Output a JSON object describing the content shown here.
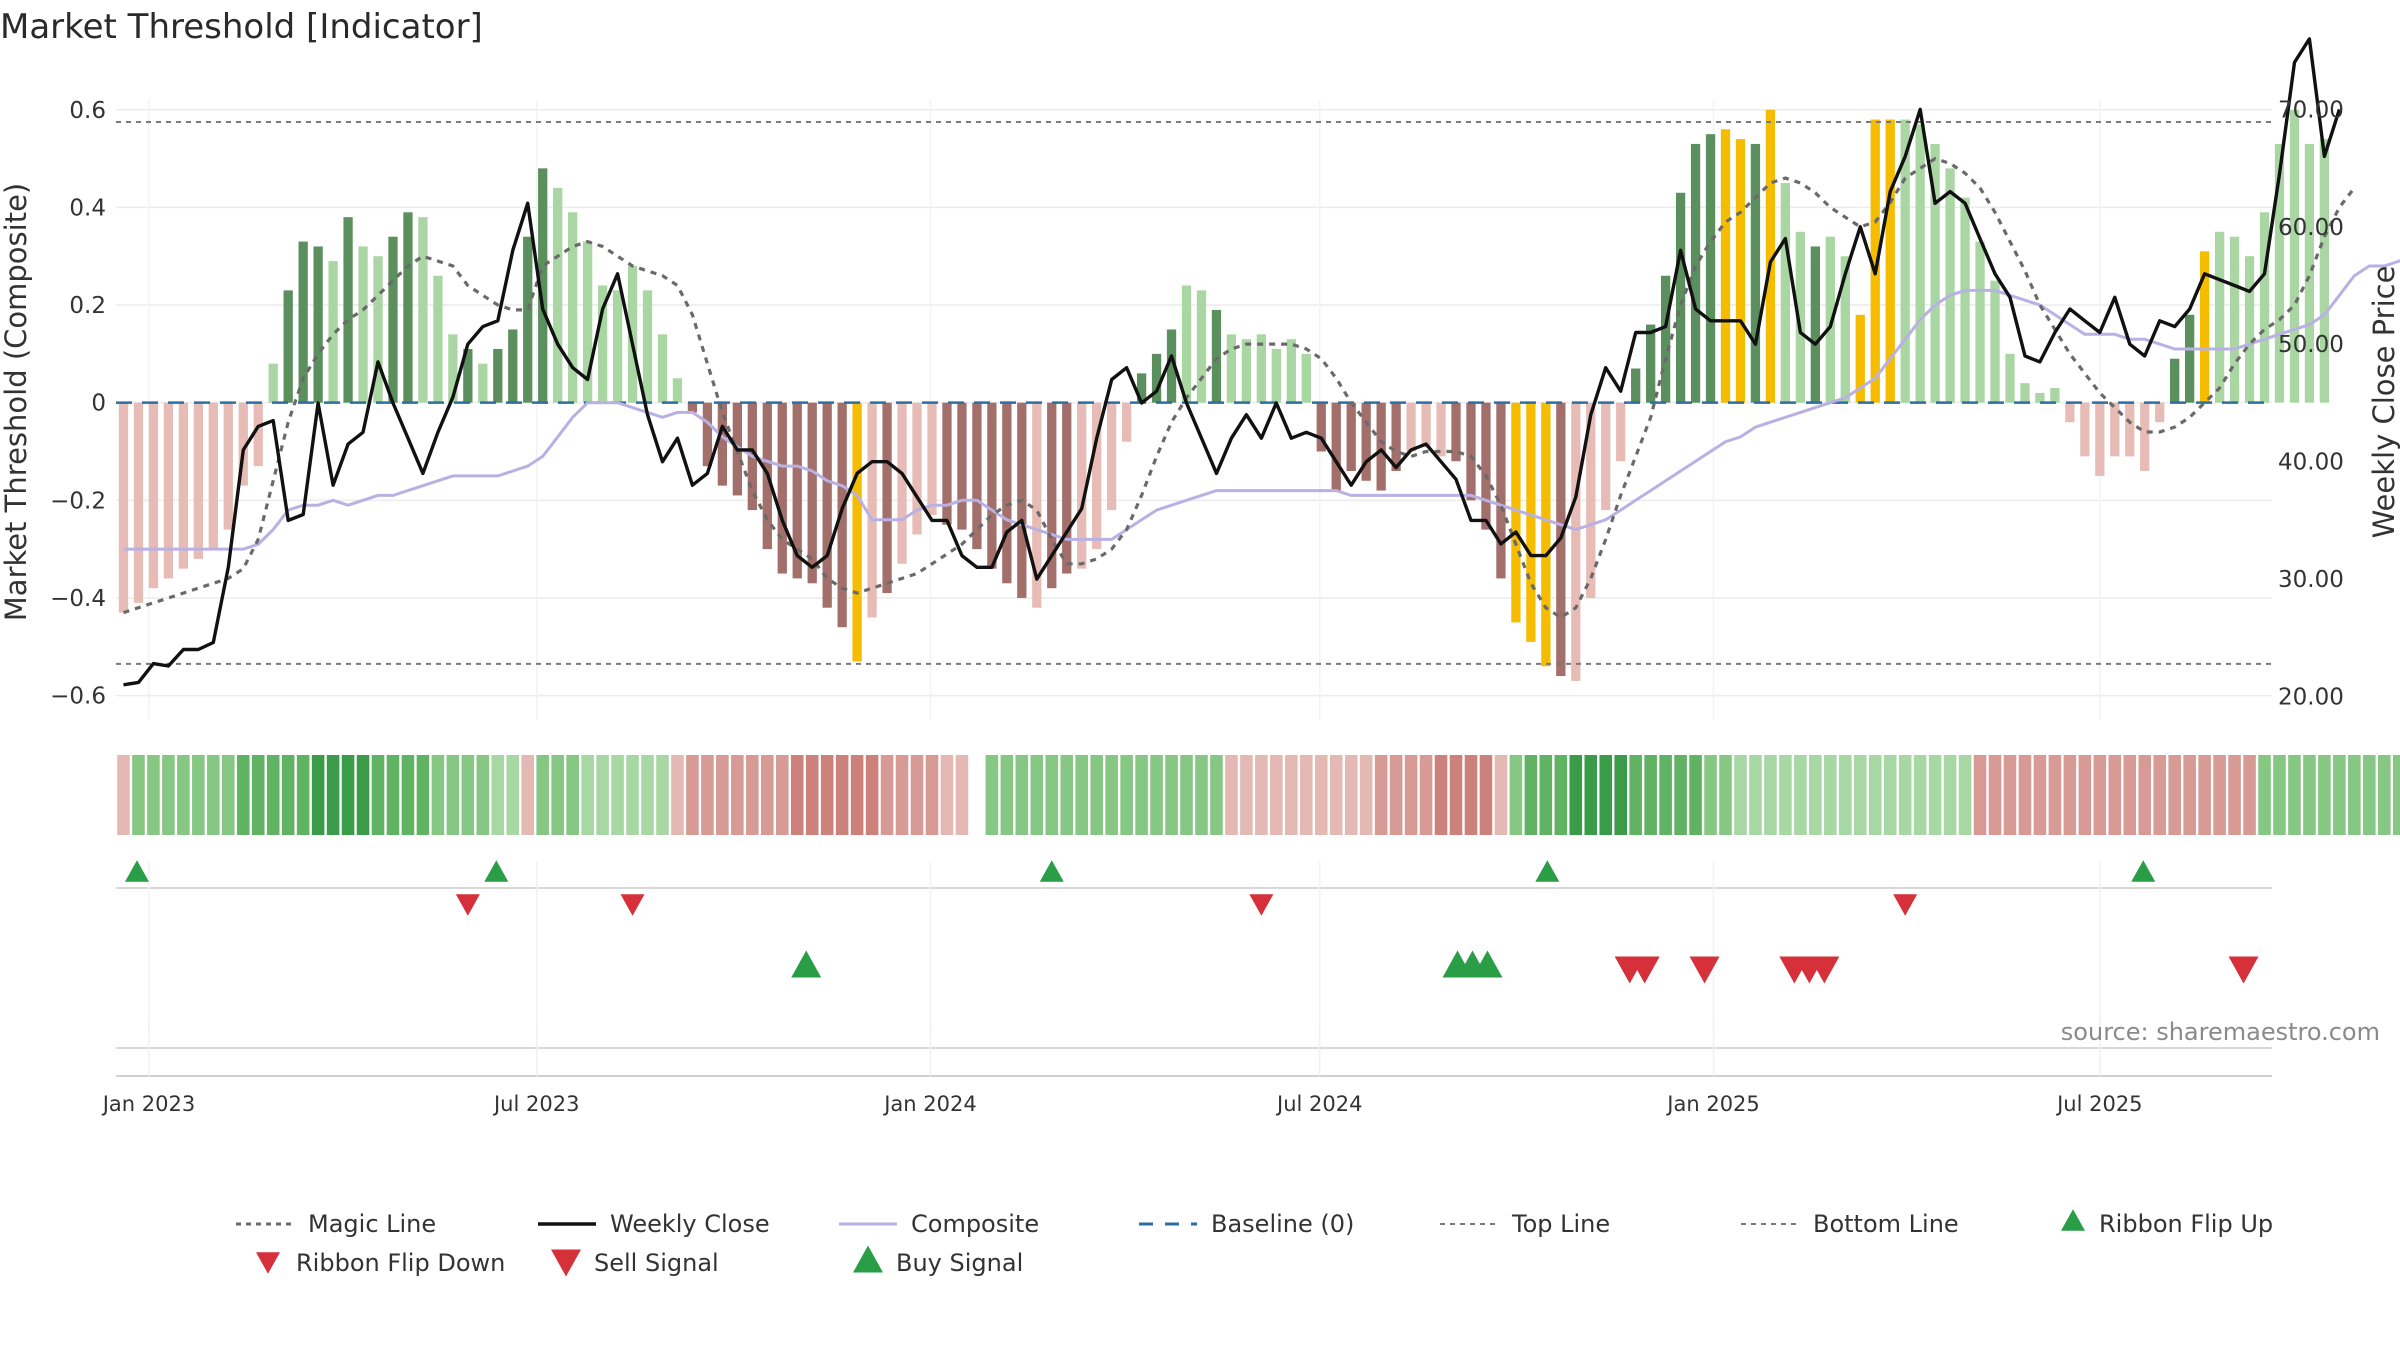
{
  "chart_data": {
    "type": "bar",
    "title": "Market Threshold [Indicator]",
    "ylabel_left": "Market Threshold (Composite)",
    "ylabel_right": "Weekly Close Price",
    "ylim_left": [
      -0.65,
      0.62
    ],
    "ylim_right": [
      18,
      70.8
    ],
    "yticks_left": [
      {
        "value": 0.6,
        "label": "0.6"
      },
      {
        "value": 0.4,
        "label": "0.4"
      },
      {
        "value": 0.2,
        "label": "0.2"
      },
      {
        "value": 0,
        "label": "0"
      },
      {
        "value": -0.2,
        "label": "−0.2"
      },
      {
        "value": -0.4,
        "label": "−0.4"
      },
      {
        "value": -0.6,
        "label": "−0.6"
      }
    ],
    "yticks_right": [
      {
        "value": 70,
        "label": "70.00"
      },
      {
        "value": 60,
        "label": "60.00"
      },
      {
        "value": 50,
        "label": "50.00"
      },
      {
        "value": 40,
        "label": "40.00"
      },
      {
        "value": 30,
        "label": "30.00"
      },
      {
        "value": 20,
        "label": "20.00"
      }
    ],
    "x_start_week": 0,
    "n_weeks": 144,
    "xticks": [
      {
        "week": 1.7,
        "label": "Jan 2023"
      },
      {
        "week": 27.6,
        "label": "Jul 2023"
      },
      {
        "week": 53.9,
        "label": "Jan 2024"
      },
      {
        "week": 79.9,
        "label": "Jul 2024"
      },
      {
        "week": 106.2,
        "label": "Jan 2025"
      },
      {
        "week": 132.0,
        "label": "Jul 2025"
      }
    ],
    "top_line": 0.575,
    "bottom_line": -0.535,
    "baseline": 0,
    "composite_bars": [
      -0.43,
      -0.41,
      -0.38,
      -0.36,
      -0.34,
      -0.32,
      -0.3,
      -0.26,
      -0.17,
      -0.13,
      0.08,
      0.23,
      0.33,
      0.32,
      0.29,
      0.38,
      0.32,
      0.3,
      0.34,
      0.39,
      0.38,
      0.26,
      0.14,
      0.11,
      0.08,
      0.11,
      0.15,
      0.34,
      0.48,
      0.44,
      0.39,
      0.33,
      0.24,
      0.23,
      0.28,
      0.23,
      0.14,
      0.05,
      -0.02,
      -0.13,
      -0.17,
      -0.19,
      -0.22,
      -0.3,
      -0.35,
      -0.36,
      -0.37,
      -0.42,
      -0.46,
      -0.53,
      -0.44,
      -0.39,
      -0.33,
      -0.27,
      -0.23,
      -0.25,
      -0.26,
      -0.3,
      -0.34,
      -0.37,
      -0.4,
      -0.42,
      -0.38,
      -0.35,
      -0.34,
      -0.3,
      -0.22,
      -0.08,
      0.06,
      0.1,
      0.15,
      0.24,
      0.23,
      0.19,
      0.14,
      0.13,
      0.14,
      0.11,
      0.13,
      0.1,
      -0.1,
      -0.18,
      -0.14,
      -0.16,
      -0.18,
      -0.14,
      -0.1,
      -0.09,
      -0.11,
      -0.12,
      -0.2,
      -0.26,
      -0.36,
      -0.45,
      -0.49,
      -0.54,
      -0.56,
      -0.57,
      -0.4,
      -0.22,
      -0.12,
      0.07,
      0.16,
      0.26,
      0.43,
      0.53,
      0.55,
      0.56,
      0.54,
      0.53,
      0.6,
      0.45,
      0.35,
      0.32,
      0.34,
      0.3,
      0.18,
      0.58,
      0.58,
      0.58,
      0.57,
      0.53,
      0.48,
      0.42,
      0.33,
      0.25,
      0.1,
      0.04,
      0.02,
      0.03,
      -0.04,
      -0.11,
      -0.15,
      -0.11,
      -0.11,
      -0.14,
      -0.04,
      0.09,
      0.18,
      0.31,
      0.35,
      0.34,
      0.3,
      0.39,
      0.53,
      0.6,
      0.53,
      0.54
    ],
    "weekly_close": [
      21.0,
      21.2,
      22.8,
      22.6,
      24.0,
      24.0,
      24.6,
      31.0,
      41.0,
      43.0,
      43.5,
      35.0,
      35.5,
      45.0,
      38.0,
      41.5,
      42.5,
      48.5,
      45.0,
      42.0,
      39.0,
      42.5,
      45.5,
      50.0,
      51.5,
      52.0,
      58.0,
      62.0,
      53.0,
      50.0,
      48.0,
      47.0,
      53.0,
      56.0,
      50.0,
      44.0,
      40.0,
      42.0,
      38.0,
      39.0,
      43.0,
      41.0,
      41.0,
      39.0,
      35.0,
      32.0,
      31.0,
      32.0,
      36.0,
      39.0,
      40.0,
      40.0,
      39.0,
      37.0,
      35.0,
      35.0,
      32.0,
      31.0,
      31.0,
      34.0,
      35.0,
      30.0,
      32.0,
      34.0,
      36.0,
      42.0,
      47.0,
      48.0,
      45.0,
      46.0,
      49.0,
      45.0,
      42.0,
      39.0,
      42.0,
      44.0,
      42.0,
      45.0,
      42.0,
      42.5,
      42.0,
      40.0,
      38.0,
      40.0,
      41.0,
      39.5,
      41.0,
      41.5,
      40.0,
      38.5,
      35.0,
      35.0,
      33.0,
      34.0,
      32.0,
      32.0,
      33.5,
      37.0,
      44.0,
      48.0,
      46.0,
      51.0,
      51.0,
      51.5,
      58.0,
      53.0,
      52.0,
      52.0,
      52.0,
      50.0,
      57.0,
      59.0,
      51.0,
      50.0,
      51.5,
      56.0,
      60.0,
      56.0,
      63.0,
      66.0,
      70.0,
      62.0,
      63.0,
      62.0,
      59.0,
      56.0,
      54.0,
      49.0,
      48.5,
      51.0,
      53.0,
      52.0,
      51.0,
      54.0,
      50.0,
      49.0,
      52.0,
      51.5,
      53.0,
      56.0,
      55.5,
      55.0,
      54.5,
      56.0,
      64.5,
      74.0,
      76.0,
      66.0,
      70.0
    ],
    "composite_line": [
      -0.3,
      -0.3,
      -0.3,
      -0.3,
      -0.3,
      -0.3,
      -0.3,
      -0.3,
      -0.3,
      -0.29,
      -0.26,
      -0.22,
      -0.21,
      -0.21,
      -0.2,
      -0.21,
      -0.2,
      -0.19,
      -0.19,
      -0.18,
      -0.17,
      -0.16,
      -0.15,
      -0.15,
      -0.15,
      -0.15,
      -0.14,
      -0.13,
      -0.11,
      -0.07,
      -0.03,
      0.0,
      0.0,
      0.0,
      -0.01,
      -0.02,
      -0.03,
      -0.02,
      -0.02,
      -0.04,
      -0.07,
      -0.09,
      -0.11,
      -0.12,
      -0.13,
      -0.13,
      -0.14,
      -0.16,
      -0.17,
      -0.19,
      -0.24,
      -0.24,
      -0.24,
      -0.22,
      -0.21,
      -0.21,
      -0.2,
      -0.2,
      -0.22,
      -0.24,
      -0.25,
      -0.26,
      -0.27,
      -0.28,
      -0.28,
      -0.28,
      -0.28,
      -0.26,
      -0.24,
      -0.22,
      -0.21,
      -0.2,
      -0.19,
      -0.18,
      -0.18,
      -0.18,
      -0.18,
      -0.18,
      -0.18,
      -0.18,
      -0.18,
      -0.18,
      -0.19,
      -0.19,
      -0.19,
      -0.19,
      -0.19,
      -0.19,
      -0.19,
      -0.19,
      -0.19,
      -0.2,
      -0.21,
      -0.22,
      -0.23,
      -0.24,
      -0.25,
      -0.26,
      -0.25,
      -0.24,
      -0.22,
      -0.2,
      -0.18,
      -0.16,
      -0.14,
      -0.12,
      -0.1,
      -0.08,
      -0.07,
      -0.05,
      -0.04,
      -0.03,
      -0.02,
      -0.01,
      0.0,
      0.01,
      0.03,
      0.05,
      0.09,
      0.13,
      0.17,
      0.2,
      0.22,
      0.23,
      0.23,
      0.23,
      0.22,
      0.21,
      0.2,
      0.18,
      0.16,
      0.14,
      0.14,
      0.14,
      0.13,
      0.13,
      0.12,
      0.11,
      0.11,
      0.11,
      0.11,
      0.11,
      0.12,
      0.13,
      0.14,
      0.15,
      0.16,
      0.18,
      0.22,
      0.26,
      0.28,
      0.28,
      0.29,
      0.3
    ],
    "magic_line": [
      -0.43,
      -0.42,
      -0.41,
      -0.4,
      -0.39,
      -0.38,
      -0.37,
      -0.36,
      -0.34,
      -0.28,
      -0.16,
      -0.04,
      0.05,
      0.1,
      0.14,
      0.17,
      0.19,
      0.22,
      0.25,
      0.28,
      0.3,
      0.29,
      0.28,
      0.24,
      0.22,
      0.2,
      0.19,
      0.19,
      0.28,
      0.3,
      0.32,
      0.33,
      0.32,
      0.3,
      0.28,
      0.27,
      0.26,
      0.24,
      0.18,
      0.08,
      -0.02,
      -0.1,
      -0.18,
      -0.24,
      -0.28,
      -0.3,
      -0.32,
      -0.36,
      -0.38,
      -0.39,
      -0.38,
      -0.37,
      -0.36,
      -0.35,
      -0.33,
      -0.31,
      -0.29,
      -0.26,
      -0.23,
      -0.21,
      -0.2,
      -0.22,
      -0.28,
      -0.33,
      -0.33,
      -0.32,
      -0.3,
      -0.26,
      -0.19,
      -0.11,
      -0.04,
      0.01,
      0.05,
      0.09,
      0.11,
      0.12,
      0.12,
      0.12,
      0.12,
      0.11,
      0.09,
      0.05,
      0.0,
      -0.04,
      -0.08,
      -0.1,
      -0.11,
      -0.1,
      -0.1,
      -0.1,
      -0.11,
      -0.15,
      -0.21,
      -0.29,
      -0.37,
      -0.42,
      -0.44,
      -0.42,
      -0.36,
      -0.28,
      -0.19,
      -0.11,
      -0.03,
      0.09,
      0.2,
      0.28,
      0.33,
      0.37,
      0.39,
      0.42,
      0.45,
      0.46,
      0.45,
      0.43,
      0.4,
      0.38,
      0.36,
      0.37,
      0.41,
      0.46,
      0.48,
      0.5,
      0.49,
      0.47,
      0.44,
      0.39,
      0.33,
      0.27,
      0.2,
      0.15,
      0.1,
      0.06,
      0.02,
      -0.01,
      -0.04,
      -0.06,
      -0.06,
      -0.05,
      -0.03,
      0.0,
      0.03,
      0.08,
      0.12,
      0.15,
      0.17,
      0.2,
      0.26,
      0.34,
      0.4,
      0.44
    ],
    "bar_bands": {
      "note": "bar colour category per week index ranges",
      "orange": [
        49,
        93,
        94,
        95,
        107,
        108,
        110,
        116,
        117,
        118,
        139
      ],
      "dark_green_ranges": [
        [
          11,
          13
        ],
        [
          15,
          15
        ],
        [
          18,
          19
        ],
        [
          23,
          23
        ],
        [
          25,
          28
        ],
        [
          68,
          70
        ],
        [
          73,
          73
        ],
        [
          101,
          106
        ],
        [
          109,
          109
        ],
        [
          113,
          113
        ],
        [
          134,
          138
        ]
      ],
      "dark_red_ranges": [
        [
          38,
          48
        ],
        [
          51,
          51
        ],
        [
          55,
          60
        ],
        [
          62,
          63
        ],
        [
          80,
          85
        ],
        [
          89,
          92
        ],
        [
          96,
          96
        ],
        [
          123,
          127
        ],
        [
          128,
          129
        ]
      ]
    },
    "ribbon": {
      "note": "one tile per week; gap at week 57",
      "states": [
        -1,
        2,
        2,
        2,
        2,
        2,
        2,
        2,
        3,
        3,
        3,
        3,
        3,
        4,
        4,
        4,
        4,
        3,
        3,
        3,
        3,
        2,
        2,
        2,
        2,
        1,
        1,
        -1,
        2,
        2,
        2,
        1,
        1,
        1,
        1,
        1,
        1,
        -1,
        -2,
        -2,
        -2,
        -2,
        -2,
        -2,
        -2,
        -3,
        -3,
        -3,
        -3,
        -3,
        -3,
        -2,
        -2,
        -2,
        -2,
        -1,
        -1,
        0,
        2,
        2,
        2,
        2,
        2,
        2,
        2,
        2,
        2,
        2,
        2,
        2,
        2,
        2,
        2,
        2,
        -1,
        -1,
        -1,
        -1,
        -1,
        -1,
        -1,
        -1,
        -1,
        -1,
        -2,
        -2,
        -2,
        -2,
        -3,
        -3,
        -3,
        -3,
        -1,
        2,
        3,
        3,
        3,
        4,
        4,
        4,
        4,
        3,
        3,
        3,
        3,
        3,
        2,
        2,
        1,
        1,
        1,
        1,
        1,
        1,
        1,
        1,
        1,
        1,
        1,
        1,
        1,
        1,
        1,
        1,
        -2,
        -2,
        -2,
        -2,
        -2,
        -2,
        -2,
        -2,
        -2,
        -2,
        -2,
        -2,
        -2,
        -2,
        -2,
        -2,
        -2,
        -2,
        -2,
        2,
        2,
        2,
        2,
        2,
        2,
        2,
        2,
        2,
        2
      ]
    },
    "ribbon_flip_up": [
      0.9,
      24.9,
      62.0,
      95.1,
      134.9
    ],
    "ribbon_flip_down": [
      23.0,
      34.0,
      76.0,
      119.0
    ],
    "buy_signal": [
      45.6,
      89.1,
      90.1,
      91.1
    ],
    "sell_signal": [
      100.6,
      101.6,
      105.6,
      111.6,
      112.6,
      113.6,
      141.6
    ],
    "legend": [
      {
        "key": "magic_line",
        "label": "Magic Line"
      },
      {
        "key": "weekly_close",
        "label": "Weekly Close"
      },
      {
        "key": "composite",
        "label": "Composite"
      },
      {
        "key": "baseline",
        "label": "Baseline (0)"
      },
      {
        "key": "top_line",
        "label": "Top Line"
      },
      {
        "key": "bottom_line",
        "label": "Bottom Line"
      },
      {
        "key": "ribbon_flip_up",
        "label": "Ribbon Flip Up"
      },
      {
        "key": "ribbon_flip_down",
        "label": "Ribbon Flip Down"
      },
      {
        "key": "sell_signal",
        "label": "Sell Signal"
      },
      {
        "key": "buy_signal",
        "label": "Buy Signal"
      }
    ],
    "source": "source: sharemaestro.com"
  },
  "colors": {
    "bar_pos_strong": "#5b8f5e",
    "bar_pos_light": "#a9d6a2",
    "bar_neg_strong": "#a36f6b",
    "bar_neg_light": "#e8bcb6",
    "bar_orange": "#f5bc00",
    "weekly_close": "#111111",
    "composite": "#b9b0e4",
    "magic_line": "#6a6a6a",
    "baseline": "#2e6e9e",
    "threshold": "#7a7a7a",
    "up_triangle": "#2a9d47",
    "down_triangle": "#d6313a"
  }
}
